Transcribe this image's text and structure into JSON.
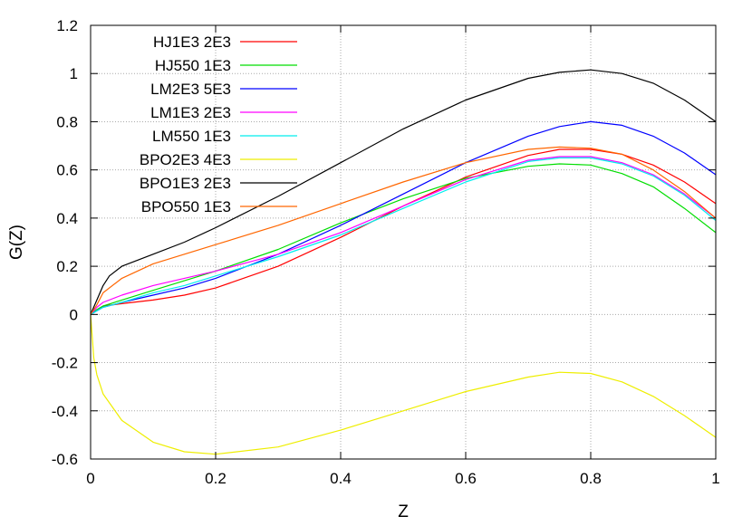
{
  "chart_data": {
    "type": "line",
    "xlabel": "Z",
    "ylabel": "G(Z)",
    "xlim": [
      0,
      1
    ],
    "ylim": [
      -0.6,
      1.2
    ],
    "xticks": [
      0,
      0.2,
      0.4,
      0.6,
      0.8,
      1
    ],
    "xtick_labels": [
      "0",
      "0.2",
      "0.4",
      "0.6",
      "0.8",
      "1"
    ],
    "yticks": [
      -0.6,
      -0.4,
      -0.2,
      0,
      0.2,
      0.4,
      0.6,
      0.8,
      1,
      1.2
    ],
    "ytick_labels": [
      "-0.6",
      "-0.4",
      "-0.2",
      "0",
      "0.2",
      "0.4",
      "0.6",
      "0.8",
      "1",
      "1.2"
    ],
    "grid": true,
    "legend_position": "top-left",
    "series": [
      {
        "name": "HJ1E3 2E3",
        "color": "#ff0000",
        "x": [
          0,
          0.01,
          0.02,
          0.05,
          0.1,
          0.15,
          0.2,
          0.3,
          0.4,
          0.5,
          0.6,
          0.7,
          0.75,
          0.8,
          0.85,
          0.9,
          0.95,
          1.0
        ],
        "y": [
          0,
          0.02,
          0.035,
          0.045,
          0.06,
          0.08,
          0.11,
          0.2,
          0.32,
          0.45,
          0.57,
          0.66,
          0.685,
          0.685,
          0.665,
          0.62,
          0.55,
          0.46
        ]
      },
      {
        "name": "HJ550 1E3",
        "color": "#00dd00",
        "x": [
          0,
          0.01,
          0.02,
          0.05,
          0.1,
          0.15,
          0.2,
          0.3,
          0.4,
          0.5,
          0.6,
          0.7,
          0.75,
          0.8,
          0.85,
          0.9,
          0.95,
          1.0
        ],
        "y": [
          0,
          0.02,
          0.035,
          0.06,
          0.1,
          0.14,
          0.18,
          0.27,
          0.38,
          0.48,
          0.565,
          0.615,
          0.625,
          0.62,
          0.585,
          0.53,
          0.44,
          0.34
        ]
      },
      {
        "name": "LM2E3 5E3",
        "color": "#0000ff",
        "x": [
          0,
          0.01,
          0.02,
          0.05,
          0.1,
          0.15,
          0.2,
          0.3,
          0.4,
          0.5,
          0.6,
          0.7,
          0.75,
          0.8,
          0.85,
          0.9,
          0.95,
          1.0
        ],
        "y": [
          0,
          0.015,
          0.03,
          0.05,
          0.08,
          0.11,
          0.15,
          0.25,
          0.37,
          0.5,
          0.63,
          0.74,
          0.78,
          0.8,
          0.785,
          0.74,
          0.67,
          0.58
        ]
      },
      {
        "name": "LM1E3 2E3",
        "color": "#ff00ff",
        "x": [
          0,
          0.01,
          0.02,
          0.05,
          0.1,
          0.15,
          0.2,
          0.3,
          0.4,
          0.5,
          0.6,
          0.7,
          0.75,
          0.8,
          0.85,
          0.9,
          0.95,
          1.0
        ],
        "y": [
          0,
          0.03,
          0.05,
          0.08,
          0.12,
          0.15,
          0.18,
          0.25,
          0.34,
          0.45,
          0.56,
          0.64,
          0.655,
          0.655,
          0.63,
          0.58,
          0.5,
          0.4
        ]
      },
      {
        "name": "LM550 1E3",
        "color": "#00eeee",
        "x": [
          0,
          0.01,
          0.02,
          0.05,
          0.1,
          0.15,
          0.2,
          0.3,
          0.4,
          0.5,
          0.6,
          0.7,
          0.75,
          0.8,
          0.85,
          0.9,
          0.95,
          1.0
        ],
        "y": [
          0,
          0.015,
          0.03,
          0.05,
          0.09,
          0.12,
          0.16,
          0.24,
          0.33,
          0.44,
          0.55,
          0.635,
          0.65,
          0.65,
          0.625,
          0.575,
          0.495,
          0.39
        ]
      },
      {
        "name": "BPO2E3 4E3",
        "color": "#eeee00",
        "x": [
          0,
          0.005,
          0.01,
          0.02,
          0.05,
          0.1,
          0.15,
          0.2,
          0.3,
          0.4,
          0.5,
          0.6,
          0.7,
          0.75,
          0.8,
          0.85,
          0.9,
          0.95,
          1.0
        ],
        "y": [
          0,
          -0.18,
          -0.25,
          -0.33,
          -0.44,
          -0.53,
          -0.57,
          -0.58,
          -0.55,
          -0.48,
          -0.4,
          -0.32,
          -0.26,
          -0.24,
          -0.245,
          -0.28,
          -0.34,
          -0.42,
          -0.51
        ]
      },
      {
        "name": "BPO1E3 2E3",
        "color": "#000000",
        "x": [
          0,
          0.01,
          0.02,
          0.03,
          0.05,
          0.1,
          0.15,
          0.2,
          0.3,
          0.4,
          0.5,
          0.6,
          0.7,
          0.75,
          0.8,
          0.85,
          0.9,
          0.95,
          1.0
        ],
        "y": [
          0,
          0.06,
          0.12,
          0.16,
          0.2,
          0.25,
          0.3,
          0.36,
          0.49,
          0.63,
          0.77,
          0.89,
          0.98,
          1.005,
          1.015,
          1.0,
          0.96,
          0.89,
          0.8
        ]
      },
      {
        "name": "BPO550 1E3",
        "color": "#ff6600",
        "x": [
          0,
          0.01,
          0.02,
          0.05,
          0.1,
          0.15,
          0.2,
          0.3,
          0.4,
          0.5,
          0.6,
          0.7,
          0.75,
          0.8,
          0.85,
          0.9,
          0.95,
          1.0
        ],
        "y": [
          0,
          0.04,
          0.09,
          0.15,
          0.21,
          0.25,
          0.29,
          0.37,
          0.46,
          0.55,
          0.63,
          0.685,
          0.695,
          0.69,
          0.665,
          0.6,
          0.51,
          0.4
        ]
      }
    ]
  }
}
